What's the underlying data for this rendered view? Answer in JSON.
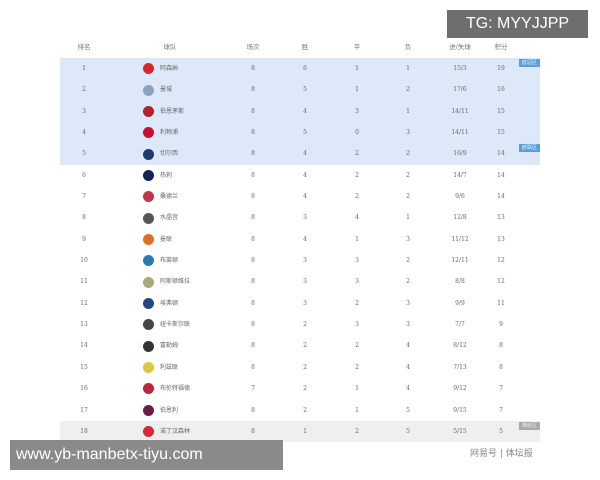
{
  "headers": [
    "排名",
    "球队",
    "场次",
    "胜",
    "平",
    "负",
    "进/失球",
    "积分"
  ],
  "rows": [
    {
      "rank": "1",
      "team": "阿森纳",
      "p": "8",
      "w": "6",
      "d": "1",
      "l": "1",
      "gf": "15/3",
      "pts": "19",
      "color": "#d6282b",
      "zone": "blue",
      "tag": "欧冠区"
    },
    {
      "rank": "2",
      "team": "曼城",
      "p": "8",
      "w": "5",
      "d": "1",
      "l": "2",
      "gf": "17/6",
      "pts": "16",
      "color": "#8aa4bd",
      "zone": "blue"
    },
    {
      "rank": "3",
      "team": "伯恩茅斯",
      "p": "8",
      "w": "4",
      "d": "3",
      "l": "1",
      "gf": "14/11",
      "pts": "15",
      "color": "#b5202a",
      "zone": "blue"
    },
    {
      "rank": "4",
      "team": "利物浦",
      "p": "8",
      "w": "5",
      "d": "0",
      "l": "3",
      "gf": "14/11",
      "pts": "15",
      "color": "#c8102e",
      "zone": "blue"
    },
    {
      "rank": "5",
      "team": "切尔西",
      "p": "8",
      "w": "4",
      "d": "2",
      "l": "2",
      "gf": "16/9",
      "pts": "14",
      "color": "#1d3a6e",
      "zone": "blue",
      "tag": "欧联区"
    },
    {
      "rank": "6",
      "team": "热刺",
      "p": "8",
      "w": "4",
      "d": "2",
      "l": "2",
      "gf": "14/7",
      "pts": "14",
      "color": "#132257"
    },
    {
      "rank": "7",
      "team": "桑德兰",
      "p": "8",
      "w": "4",
      "d": "2",
      "l": "2",
      "gf": "9/6",
      "pts": "14",
      "color": "#c0364a"
    },
    {
      "rank": "8",
      "team": "水晶宫",
      "p": "8",
      "w": "3",
      "d": "4",
      "l": "1",
      "gf": "12/8",
      "pts": "13",
      "color": "#555"
    },
    {
      "rank": "9",
      "team": "曼联",
      "p": "8",
      "w": "4",
      "d": "1",
      "l": "3",
      "gf": "11/12",
      "pts": "13",
      "color": "#e07020"
    },
    {
      "rank": "10",
      "team": "布莱顿",
      "p": "8",
      "w": "3",
      "d": "3",
      "l": "2",
      "gf": "12/11",
      "pts": "12",
      "color": "#2a7ab0"
    },
    {
      "rank": "11",
      "team": "阿斯顿维拉",
      "p": "8",
      "w": "3",
      "d": "3",
      "l": "2",
      "gf": "8/8",
      "pts": "12",
      "color": "#a9a878"
    },
    {
      "rank": "12",
      "team": "埃弗顿",
      "p": "8",
      "w": "3",
      "d": "2",
      "l": "3",
      "gf": "9/9",
      "pts": "11",
      "color": "#274488"
    },
    {
      "rank": "13",
      "team": "纽卡斯尔联",
      "p": "8",
      "w": "2",
      "d": "3",
      "l": "3",
      "gf": "7/7",
      "pts": "9",
      "color": "#444"
    },
    {
      "rank": "14",
      "team": "富勒姆",
      "p": "8",
      "w": "2",
      "d": "2",
      "l": "4",
      "gf": "8/12",
      "pts": "8",
      "color": "#333"
    },
    {
      "rank": "15",
      "team": "利兹联",
      "p": "8",
      "w": "2",
      "d": "2",
      "l": "4",
      "gf": "7/13",
      "pts": "8",
      "color": "#d6c93a"
    },
    {
      "rank": "16",
      "team": "布伦特福德",
      "p": "7",
      "w": "2",
      "d": "1",
      "l": "4",
      "gf": "9/12",
      "pts": "7",
      "color": "#b8283a"
    },
    {
      "rank": "17",
      "team": "伯恩利",
      "p": "8",
      "w": "2",
      "d": "1",
      "l": "5",
      "gf": "9/15",
      "pts": "7",
      "color": "#6c1d45"
    },
    {
      "rank": "18",
      "team": "诺丁汉森林",
      "p": "8",
      "w": "1",
      "d": "2",
      "l": "5",
      "gf": "5/15",
      "pts": "5",
      "color": "#d7263d",
      "zone": "gray",
      "tag": "降级区"
    }
  ],
  "watermark": "网易号 | 体坛报",
  "overlay_tg": "TG: MYYJJPP",
  "overlay_site": "www.yb-manbetx-tiyu.com"
}
